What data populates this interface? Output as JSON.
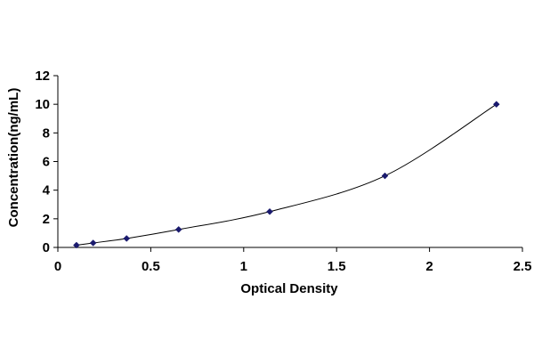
{
  "chart_data": {
    "type": "scatter",
    "title": "",
    "xlabel": "Optical Density",
    "ylabel": "Concentration(ng/mL)",
    "xlim": [
      0,
      2.5
    ],
    "ylim": [
      0,
      12
    ],
    "x_ticks": [
      "0",
      "0.5",
      "1",
      "1.5",
      "2",
      "2.5"
    ],
    "y_ticks": [
      "0",
      "2",
      "4",
      "6",
      "8",
      "10",
      "12"
    ],
    "grid": false,
    "legend": "none",
    "series": [
      {
        "x": [
          0.1,
          0.19,
          0.37,
          0.65,
          1.14,
          1.76,
          2.36
        ],
        "y": [
          0.156,
          0.312,
          0.625,
          1.25,
          2.5,
          5,
          10
        ],
        "marker": "diamond",
        "fit_line": "smooth curve"
      }
    ],
    "colors": {
      "marker": "#1a1a6e",
      "curve": "#000000",
      "axis": "#000000"
    }
  }
}
